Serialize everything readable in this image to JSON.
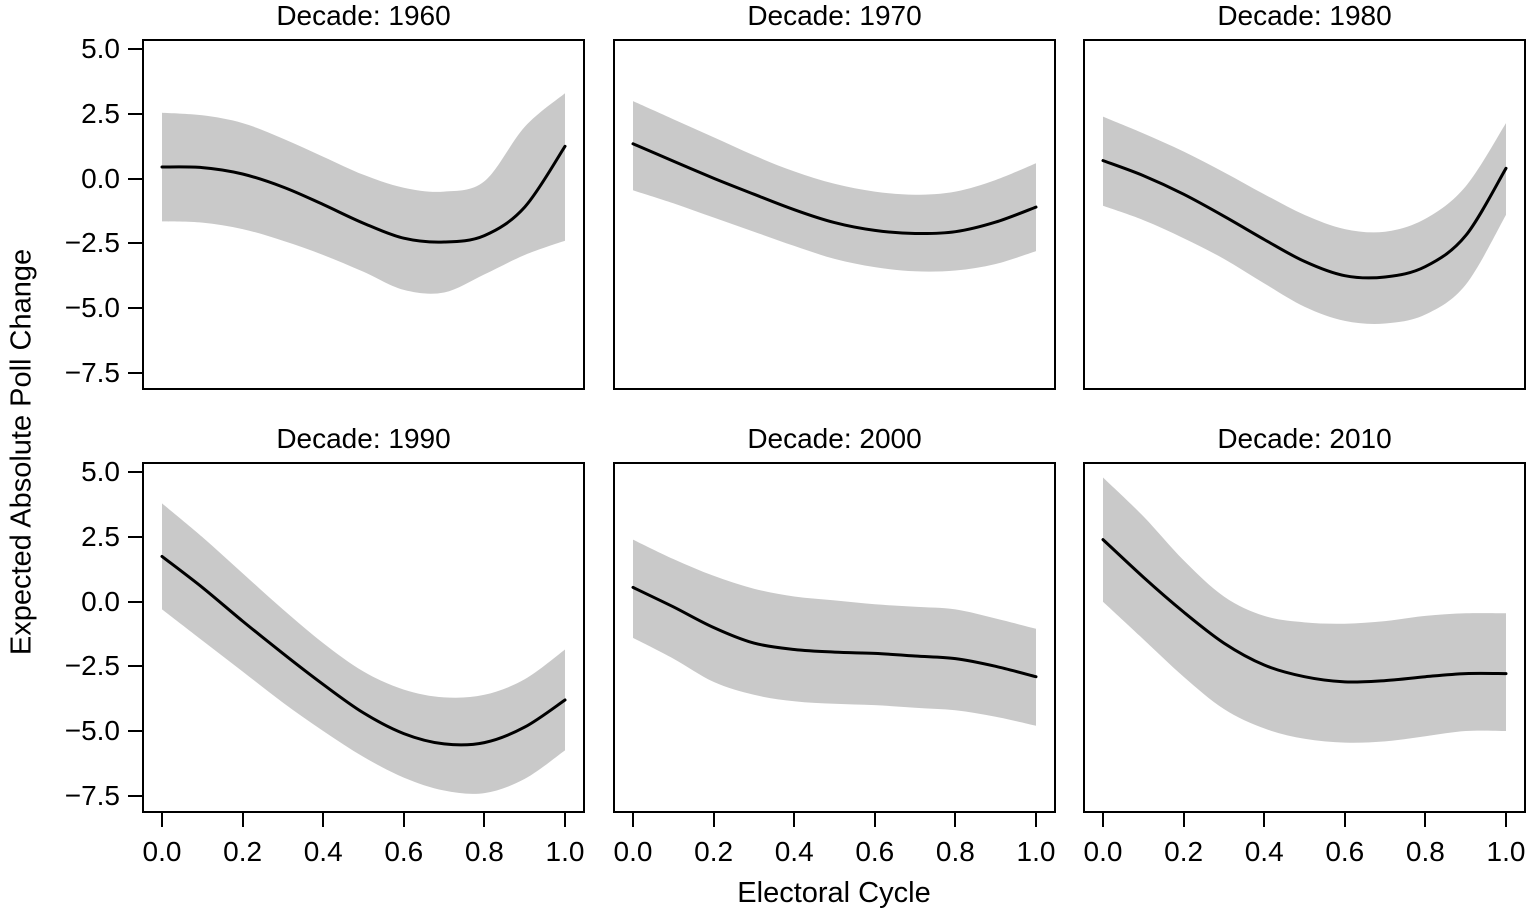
{
  "chart_data": {
    "type": "line",
    "description": "Faceted smoothed regression fits with gray confidence bands, by decade",
    "xlabel": "Electoral Cycle",
    "ylabel": "Expected Absolute Poll Change",
    "x_ticks": [
      0.0,
      0.2,
      0.4,
      0.6,
      0.8,
      1.0
    ],
    "x_tick_labels": [
      "0.0",
      "0.2",
      "0.4",
      "0.6",
      "0.8",
      "1.0"
    ],
    "y_ticks": [
      5.0,
      2.5,
      0.0,
      -2.5,
      -5.0,
      -7.5
    ],
    "y_tick_labels": [
      "5.0",
      "2.5",
      "0.0",
      "−2.5",
      "−5.0",
      "−7.5"
    ],
    "xlim": [
      -0.05,
      1.05
    ],
    "ylim": [
      -8.17,
      5.4
    ],
    "grid": false,
    "legend": "none",
    "band_color": "#c9c9c9",
    "line_color": "#000000",
    "frame_color": "#000000",
    "x": [
      0.0,
      0.1,
      0.2,
      0.3,
      0.4,
      0.5,
      0.6,
      0.7,
      0.8,
      0.9,
      1.0
    ],
    "panels": [
      {
        "title": "Decade: 1960",
        "fit": [
          0.45,
          0.43,
          0.18,
          -0.32,
          -1.0,
          -1.72,
          -2.3,
          -2.45,
          -2.2,
          -1.1,
          1.25
        ],
        "upper": [
          2.55,
          2.45,
          2.15,
          1.55,
          0.85,
          0.15,
          -0.35,
          -0.5,
          -0.1,
          2.0,
          3.3
        ],
        "lower": [
          -1.65,
          -1.7,
          -1.95,
          -2.4,
          -2.95,
          -3.6,
          -4.3,
          -4.4,
          -3.7,
          -2.95,
          -2.4
        ]
      },
      {
        "title": "Decade: 1970",
        "fit": [
          1.35,
          0.68,
          0.02,
          -0.6,
          -1.2,
          -1.7,
          -2.0,
          -2.12,
          -2.05,
          -1.68,
          -1.1
        ],
        "upper": [
          3.0,
          2.3,
          1.6,
          0.9,
          0.28,
          -0.2,
          -0.5,
          -0.62,
          -0.5,
          -0.05,
          0.6
        ],
        "lower": [
          -0.45,
          -0.95,
          -1.5,
          -2.05,
          -2.6,
          -3.1,
          -3.42,
          -3.58,
          -3.55,
          -3.3,
          -2.8
        ]
      },
      {
        "title": "Decade: 1980",
        "fit": [
          0.7,
          0.12,
          -0.6,
          -1.45,
          -2.35,
          -3.2,
          -3.75,
          -3.8,
          -3.4,
          -2.2,
          0.4
        ],
        "upper": [
          2.4,
          1.75,
          1.05,
          0.25,
          -0.6,
          -1.4,
          -1.95,
          -2.05,
          -1.55,
          -0.3,
          2.15
        ],
        "lower": [
          -1.05,
          -1.6,
          -2.3,
          -3.1,
          -4.05,
          -4.95,
          -5.5,
          -5.6,
          -5.25,
          -4.1,
          -1.4
        ]
      },
      {
        "title": "Decade: 1990",
        "fit": [
          1.75,
          0.55,
          -0.75,
          -2.0,
          -3.2,
          -4.3,
          -5.1,
          -5.5,
          -5.45,
          -4.85,
          -3.8
        ],
        "upper": [
          3.8,
          2.5,
          1.1,
          -0.3,
          -1.6,
          -2.7,
          -3.4,
          -3.7,
          -3.6,
          -3.0,
          -1.85
        ],
        "lower": [
          -0.3,
          -1.5,
          -2.7,
          -3.9,
          -5.0,
          -6.0,
          -6.8,
          -7.3,
          -7.4,
          -6.85,
          -5.75
        ]
      },
      {
        "title": "Decade: 2000",
        "fit": [
          0.55,
          -0.2,
          -1.0,
          -1.6,
          -1.85,
          -1.95,
          -2.0,
          -2.1,
          -2.2,
          -2.5,
          -2.9
        ],
        "upper": [
          2.4,
          1.65,
          1.0,
          0.5,
          0.2,
          0.05,
          -0.1,
          -0.2,
          -0.3,
          -0.65,
          -1.05
        ],
        "lower": [
          -1.4,
          -2.2,
          -3.1,
          -3.6,
          -3.85,
          -3.95,
          -4.0,
          -4.1,
          -4.2,
          -4.45,
          -4.8
        ]
      },
      {
        "title": "Decade: 2010",
        "fit": [
          2.4,
          0.95,
          -0.4,
          -1.6,
          -2.45,
          -2.9,
          -3.1,
          -3.05,
          -2.9,
          -2.78,
          -2.78
        ],
        "upper": [
          4.8,
          3.3,
          1.6,
          0.2,
          -0.55,
          -0.8,
          -0.85,
          -0.75,
          -0.55,
          -0.45,
          -0.45
        ],
        "lower": [
          0.0,
          -1.45,
          -2.9,
          -4.15,
          -4.9,
          -5.3,
          -5.45,
          -5.4,
          -5.2,
          -5.0,
          -5.0
        ]
      }
    ]
  }
}
